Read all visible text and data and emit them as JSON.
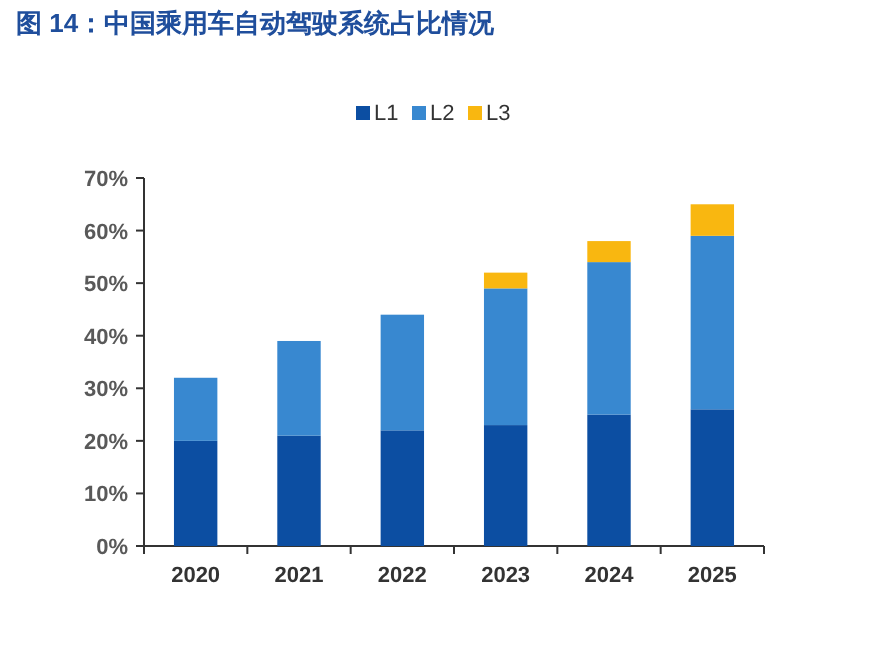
{
  "chart_data": {
    "type": "bar",
    "stacked": true,
    "title": "图 14：中国乘用车自动驾驶系统占比情况",
    "categories": [
      "2020",
      "2021",
      "2022",
      "2023",
      "2024",
      "2025"
    ],
    "series": [
      {
        "name": "L1",
        "color": "#0c4ea2",
        "values": [
          20,
          21,
          22,
          23,
          25,
          26
        ]
      },
      {
        "name": "L2",
        "color": "#3888d0",
        "values": [
          12,
          18,
          22,
          26,
          29,
          33
        ]
      },
      {
        "name": "L3",
        "color": "#f9b710",
        "values": [
          null,
          null,
          null,
          3,
          4,
          6
        ]
      }
    ],
    "ylim": [
      0,
      70
    ],
    "yticks": [
      {
        "value": 0,
        "label": "0%"
      },
      {
        "value": 10,
        "label": "10%"
      },
      {
        "value": 20,
        "label": "20%"
      },
      {
        "value": 30,
        "label": "30%"
      },
      {
        "value": 40,
        "label": "40%"
      },
      {
        "value": 50,
        "label": "50%"
      },
      {
        "value": 60,
        "label": "60%"
      },
      {
        "value": 70,
        "label": "70%"
      }
    ],
    "grid": false,
    "legend": "top"
  }
}
